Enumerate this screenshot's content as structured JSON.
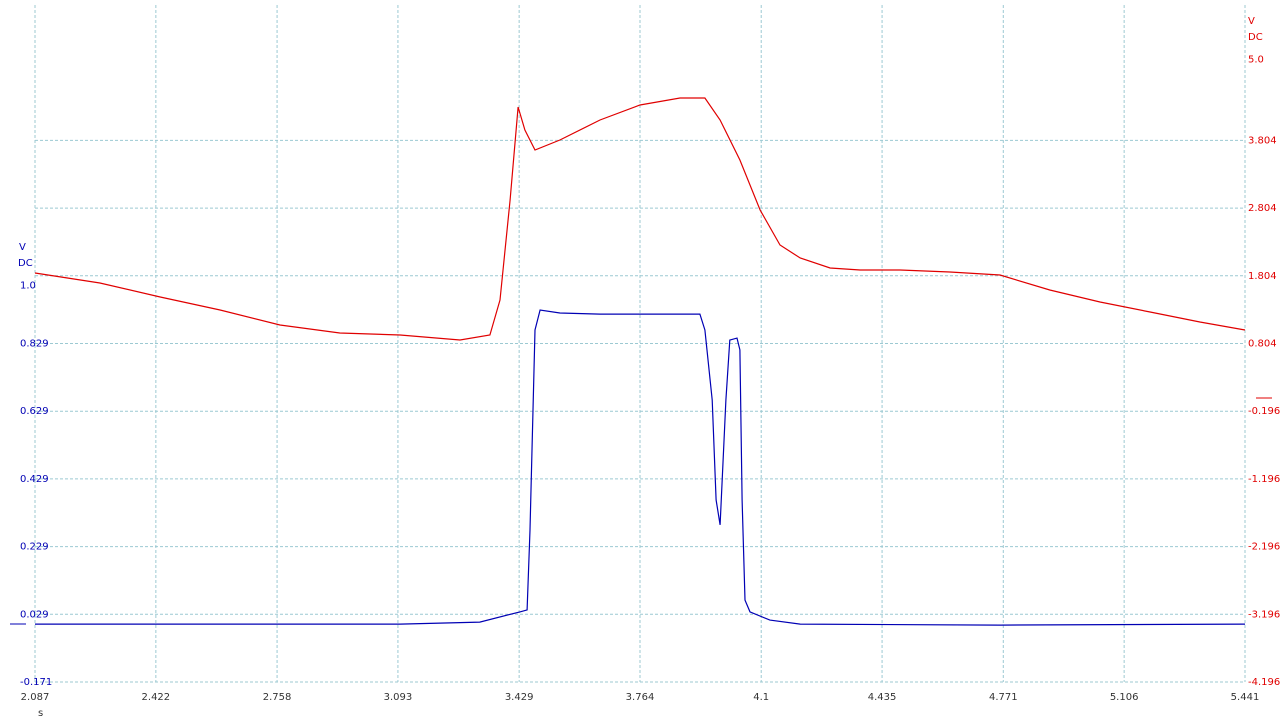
{
  "chart_data": {
    "type": "line",
    "x_unit": "s",
    "y_unit": "V",
    "y_coupling": "DC",
    "y2_unit": "V",
    "y2_coupling": "DC",
    "xlim": [
      2.087,
      5.441
    ],
    "xticks": [
      2.087,
      2.422,
      2.758,
      3.093,
      3.429,
      3.764,
      4.1,
      4.435,
      4.771,
      5.106,
      5.441
    ],
    "ylim": [
      -0.171,
      1.829
    ],
    "yticks": [
      -0.171,
      0.029,
      0.229,
      0.429,
      0.629,
      0.829,
      {
        "value": 1.0,
        "label": "1.0"
      }
    ],
    "y2lim": [
      -4.196,
      5.804
    ],
    "y2ticks": [
      -4.196,
      -3.196,
      -2.196,
      -1.196,
      -0.196,
      0.804,
      1.804,
      2.804,
      3.804,
      {
        "value": 5.0,
        "label": "5.0"
      }
    ],
    "grid": true,
    "series": [
      {
        "color": "#0000b4",
        "axis": "y",
        "x": [
          2.087,
          3.099,
          3.32,
          3.431,
          3.451,
          3.459,
          3.473,
          3.487,
          3.542,
          3.653,
          3.792,
          3.93,
          3.944,
          3.964,
          3.975,
          3.986,
          4.002,
          4.013,
          4.033,
          4.041,
          4.047,
          4.055,
          4.069,
          4.124,
          4.208,
          4.762,
          5.441
        ],
        "values": [
          0.0,
          0.0,
          0.006,
          0.036,
          0.042,
          0.278,
          0.869,
          0.928,
          0.919,
          0.916,
          0.916,
          0.916,
          0.869,
          0.662,
          0.367,
          0.293,
          0.662,
          0.839,
          0.845,
          0.81,
          0.367,
          0.071,
          0.036,
          0.012,
          0.0,
          -0.003,
          0.0
        ]
      },
      {
        "color": "#e00000",
        "axis": "y2",
        "x": [
          2.087,
          2.267,
          2.434,
          2.6,
          2.766,
          2.932,
          3.099,
          3.265,
          3.348,
          3.376,
          3.404,
          3.426,
          3.445,
          3.473,
          3.542,
          3.653,
          3.764,
          3.875,
          3.944,
          3.986,
          4.041,
          4.097,
          4.152,
          4.208,
          4.291,
          4.374,
          4.485,
          4.623,
          4.762,
          4.9,
          5.039,
          5.178,
          5.316,
          5.441
        ],
        "values": [
          1.845,
          1.698,
          1.491,
          1.299,
          1.077,
          0.959,
          0.93,
          0.856,
          0.93,
          1.447,
          2.924,
          4.297,
          3.958,
          3.662,
          3.81,
          4.105,
          4.327,
          4.43,
          4.43,
          4.105,
          3.514,
          2.776,
          2.259,
          2.067,
          1.919,
          1.89,
          1.89,
          1.86,
          1.816,
          1.594,
          1.417,
          1.269,
          1.122,
          1.003
        ]
      }
    ]
  }
}
